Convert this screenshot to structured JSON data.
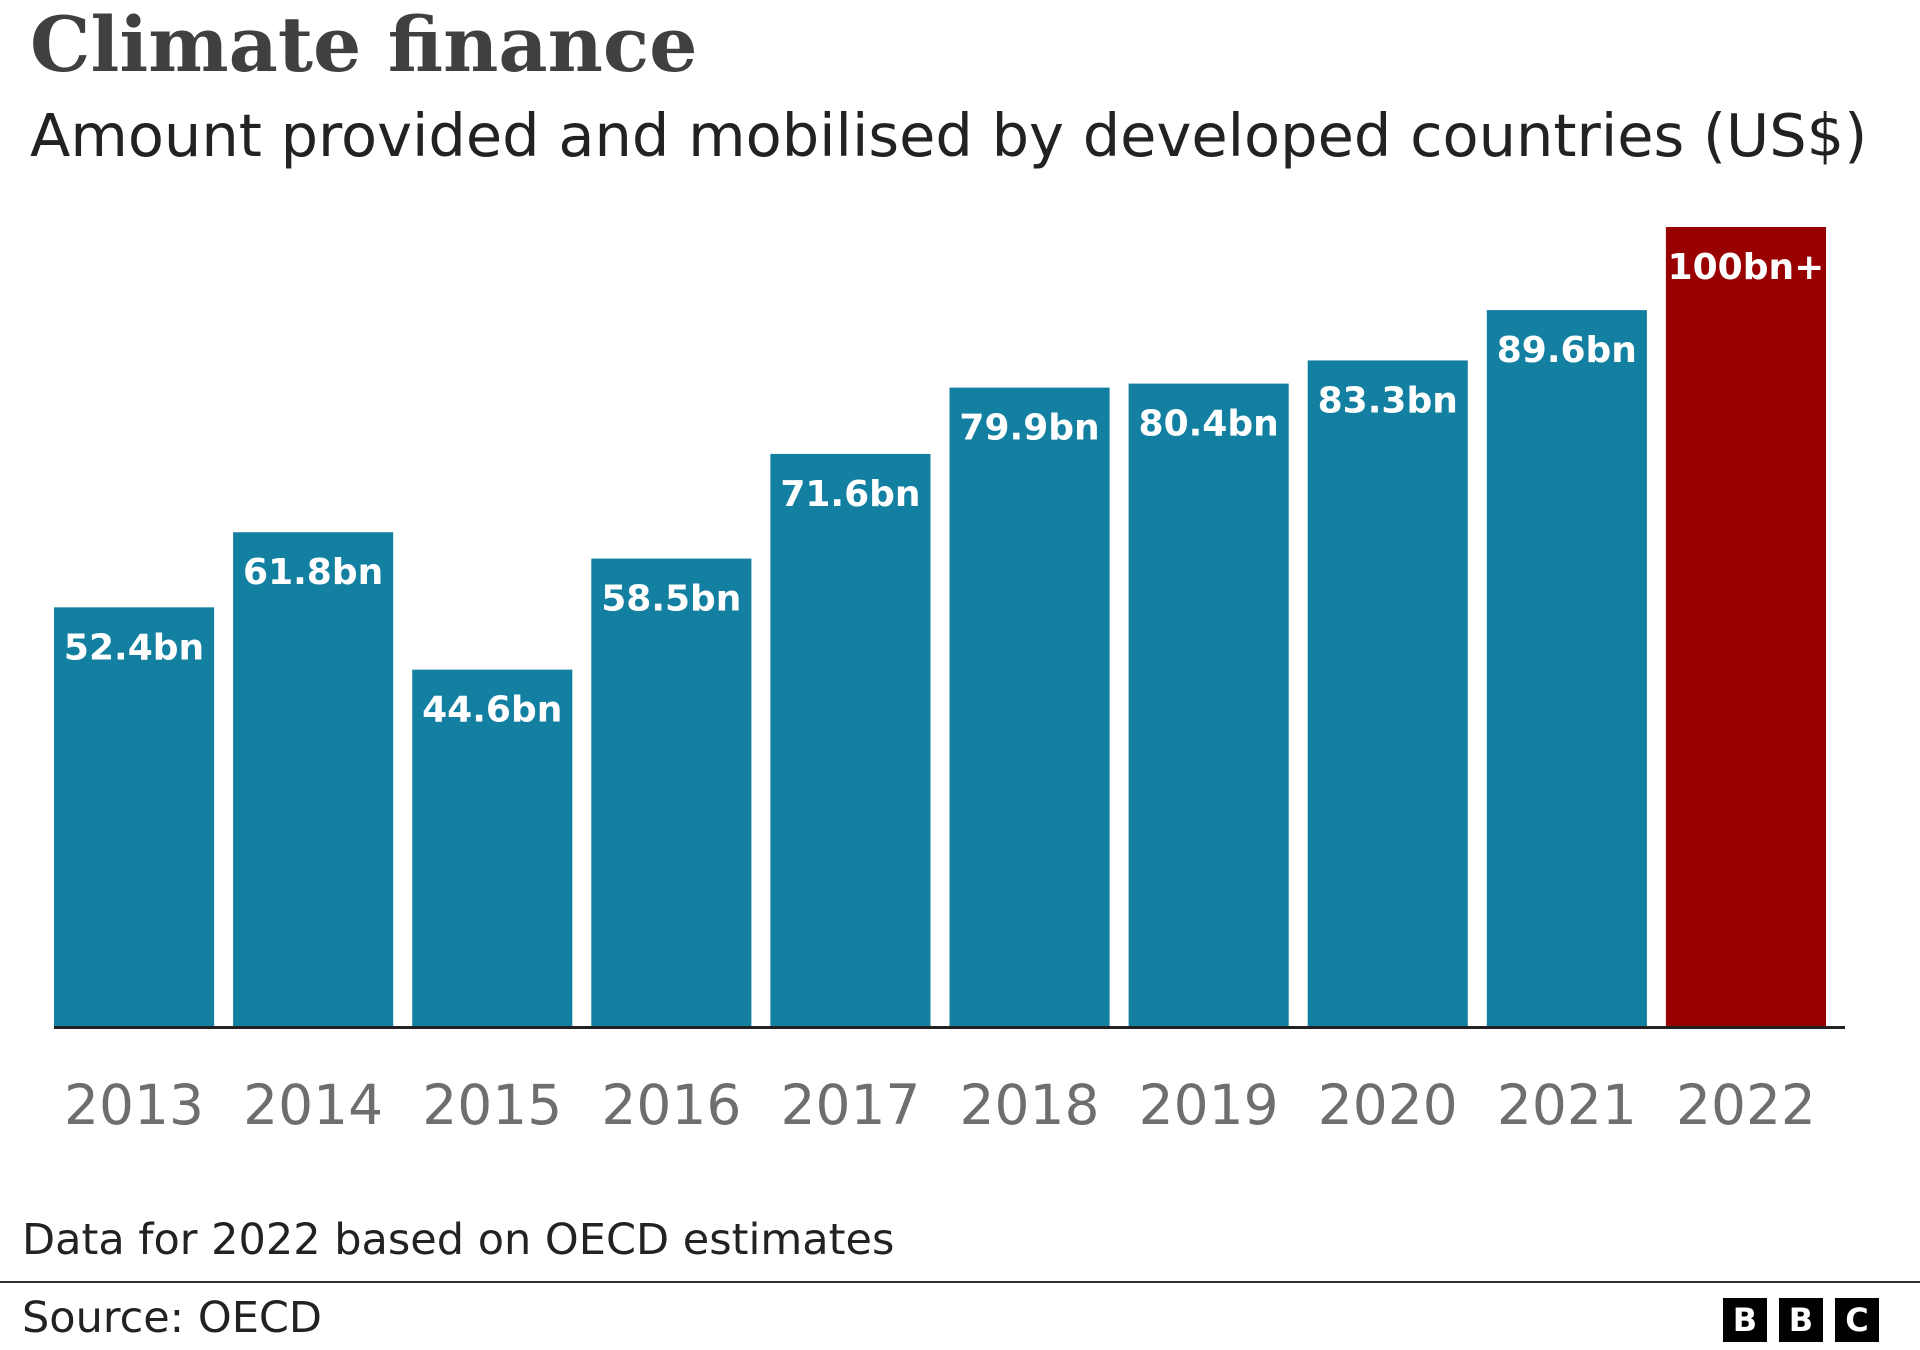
{
  "chart_data": {
    "type": "bar",
    "title": "Climate finance",
    "subtitle": "Amount provided and mobilised by developed countries (US$)",
    "categories": [
      "2013",
      "2014",
      "2015",
      "2016",
      "2017",
      "2018",
      "2019",
      "2020",
      "2021",
      "2022"
    ],
    "values": [
      52.4,
      61.8,
      44.6,
      58.5,
      71.6,
      79.9,
      80.4,
      83.3,
      89.6,
      100
    ],
    "value_labels": [
      "52.4bn",
      "61.8bn",
      "44.6bn",
      "58.5bn",
      "71.6bn",
      "79.9bn",
      "80.4bn",
      "83.3bn",
      "89.6bn",
      "100bn+"
    ],
    "unit": "US$ billion",
    "ylim": [
      0,
      100
    ],
    "grid": false,
    "legend": "none",
    "colors": {
      "default_bar": "#1380A1",
      "highlight_bar": "#990000",
      "axis": "#222222",
      "tick_label": "#6E6E6E",
      "bar_label": "#ffffff"
    },
    "highlight_index": 9
  },
  "footer": {
    "note": "Data for 2022 based on OECD estimates",
    "source": "Source: OECD",
    "logo_letters": [
      "B",
      "B",
      "C"
    ]
  }
}
